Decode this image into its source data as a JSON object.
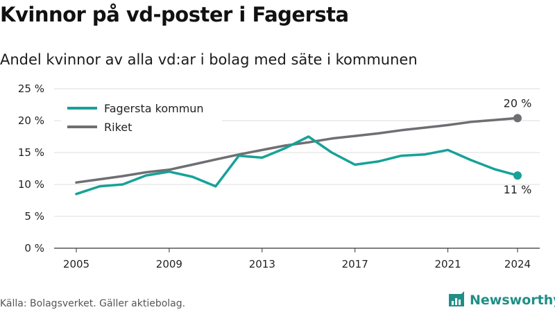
{
  "title": "Kvinnor på vd-poster i Fagersta",
  "subtitle": "Andel kvinnor av alla vd:ar i bolag med säte i kommunen",
  "source": "Källa: Bolagsverket. Gäller aktiebolag.",
  "brand": {
    "name": "Newsworthy",
    "icon": "newsworthy-logo-icon",
    "color": "#1f8f86"
  },
  "chart_data": {
    "type": "line",
    "title": "Kvinnor på vd-poster i Fagersta",
    "subtitle": "Andel kvinnor av alla vd:ar i bolag med säte i kommunen",
    "xlabel": "",
    "ylabel": "",
    "x": [
      2005,
      2006,
      2007,
      2008,
      2009,
      2010,
      2011,
      2012,
      2013,
      2014,
      2015,
      2016,
      2017,
      2018,
      2019,
      2020,
      2021,
      2022,
      2023,
      2024
    ],
    "series": [
      {
        "name": "Fagersta kommun",
        "color": "#16a297",
        "values": [
          8.5,
          9.7,
          10.0,
          11.4,
          12.0,
          11.2,
          9.7,
          14.5,
          14.2,
          15.7,
          17.5,
          15.0,
          13.1,
          13.6,
          14.5,
          14.7,
          15.4,
          13.8,
          12.4,
          11.4
        ],
        "end_label": "11 %"
      },
      {
        "name": "Riket",
        "color": "#6e6e73",
        "values": [
          10.3,
          10.8,
          11.3,
          11.9,
          12.3,
          13.1,
          13.9,
          14.7,
          15.4,
          16.1,
          16.6,
          17.2,
          17.6,
          18.0,
          18.5,
          18.9,
          19.3,
          19.8,
          20.1,
          20.4
        ],
        "end_label": "20 %"
      }
    ],
    "x_ticks": [
      2005,
      2009,
      2013,
      2017,
      2021,
      2024
    ],
    "y_ticks": [
      0,
      5,
      10,
      15,
      20,
      25
    ],
    "y_tick_labels": [
      "0 %",
      "5 %",
      "10 %",
      "15 %",
      "20 %",
      "25 %"
    ],
    "xlim": [
      2005,
      2024
    ],
    "ylim": [
      0,
      25
    ],
    "grid": "horizontal",
    "legend_position": "top-left"
  }
}
